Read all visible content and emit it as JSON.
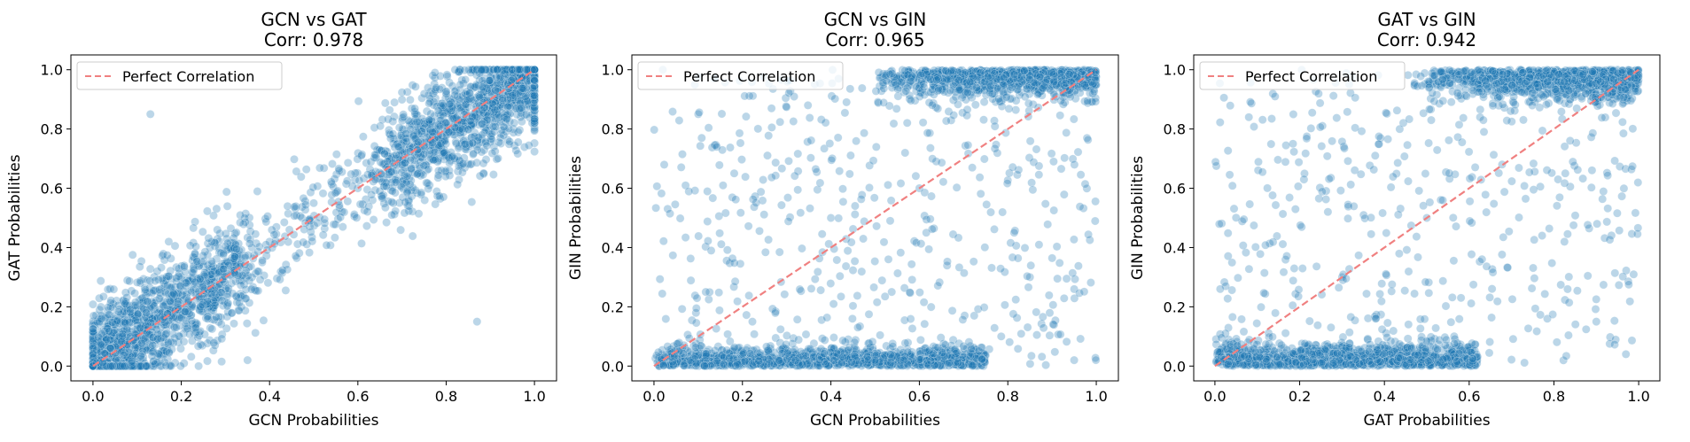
{
  "colors": {
    "points": "#1f77b4",
    "reference_line": "#f08080",
    "axes": "#000000"
  },
  "chart_data": [
    {
      "type": "scatter",
      "title": "GCN vs GAT",
      "subtitle": "Corr: 0.978",
      "xlabel": "GCN Probabilities",
      "ylabel": "GAT Probabilities",
      "xlim": [
        -0.05,
        1.05
      ],
      "ylim": [
        -0.05,
        1.05
      ],
      "xticks": [
        "0.0",
        "0.2",
        "0.4",
        "0.6",
        "0.8",
        "1.0"
      ],
      "yticks": [
        "0.0",
        "0.2",
        "0.4",
        "0.6",
        "0.8",
        "1.0"
      ],
      "legend": {
        "entry": "Perfect Correlation",
        "placement": "upper-left"
      },
      "reference_line": {
        "from": [
          0,
          0
        ],
        "to": [
          1,
          1
        ]
      },
      "point_cloud": {
        "count": 3000,
        "alpha": 0.3,
        "description_pattern": "tight-diagonal",
        "samples": [
          [
            0.02,
            0.05
          ],
          [
            0.05,
            0.12
          ],
          [
            0.1,
            0.2
          ],
          [
            0.15,
            0.18
          ],
          [
            0.2,
            0.3
          ],
          [
            0.3,
            0.35
          ],
          [
            0.4,
            0.42
          ],
          [
            0.5,
            0.55
          ],
          [
            0.6,
            0.6
          ],
          [
            0.7,
            0.72
          ],
          [
            0.8,
            0.78
          ],
          [
            0.9,
            0.88
          ],
          [
            0.95,
            0.92
          ],
          [
            0.98,
            0.97
          ],
          [
            0.13,
            0.85
          ],
          [
            0.87,
            0.15
          ],
          [
            0.35,
            0.02
          ]
        ]
      }
    },
    {
      "type": "scatter",
      "title": "GCN vs GIN",
      "subtitle": "Corr: 0.965",
      "xlabel": "GCN Probabilities",
      "ylabel": "GIN Probabilities",
      "xlim": [
        -0.05,
        1.05
      ],
      "ylim": [
        -0.05,
        1.05
      ],
      "xticks": [
        "0.0",
        "0.2",
        "0.4",
        "0.6",
        "0.8",
        "1.0"
      ],
      "yticks": [
        "0.0",
        "0.2",
        "0.4",
        "0.6",
        "0.8",
        "1.0"
      ],
      "legend": {
        "entry": "Perfect Correlation",
        "placement": "upper-left"
      },
      "reference_line": {
        "from": [
          0,
          0
        ],
        "to": [
          1,
          1
        ]
      },
      "point_cloud": {
        "count": 3000,
        "alpha": 0.3,
        "description_pattern": "bimodal-corners",
        "samples": [
          [
            0.02,
            0.02
          ],
          [
            0.1,
            0.03
          ],
          [
            0.3,
            0.04
          ],
          [
            0.5,
            0.02
          ],
          [
            0.6,
            0.05
          ],
          [
            0.7,
            0.97
          ],
          [
            0.8,
            0.98
          ],
          [
            0.9,
            0.99
          ],
          [
            0.98,
            0.95
          ],
          [
            0.02,
            1.0
          ],
          [
            0.1,
            0.85
          ],
          [
            0.4,
            0.5
          ],
          [
            0.6,
            0.6
          ],
          [
            0.95,
            0.02
          ],
          [
            0.85,
            0.3
          ]
        ]
      }
    },
    {
      "type": "scatter",
      "title": "GAT vs GIN",
      "subtitle": "Corr: 0.942",
      "xlabel": "GAT Probabilities",
      "ylabel": "GIN Probabilities",
      "xlim": [
        -0.05,
        1.05
      ],
      "ylim": [
        -0.05,
        1.05
      ],
      "xticks": [
        "0.0",
        "0.2",
        "0.4",
        "0.6",
        "0.8",
        "1.0"
      ],
      "yticks": [
        "0.0",
        "0.2",
        "0.4",
        "0.6",
        "0.8",
        "1.0"
      ],
      "legend": {
        "entry": "Perfect Correlation",
        "placement": "upper-left"
      },
      "reference_line": {
        "from": [
          0,
          0
        ],
        "to": [
          1,
          1
        ]
      },
      "point_cloud": {
        "count": 3000,
        "alpha": 0.3,
        "description_pattern": "bimodal-lower-left-upper-right",
        "samples": [
          [
            0.02,
            0.02
          ],
          [
            0.2,
            0.03
          ],
          [
            0.4,
            0.04
          ],
          [
            0.6,
            0.05
          ],
          [
            0.7,
            0.98
          ],
          [
            0.8,
            0.99
          ],
          [
            0.9,
            0.98
          ],
          [
            0.98,
            0.97
          ],
          [
            0.08,
            0.84
          ],
          [
            0.3,
            0.3
          ],
          [
            0.5,
            0.5
          ],
          [
            0.97,
            0.04
          ],
          [
            0.9,
            0.15
          ]
        ]
      }
    }
  ]
}
